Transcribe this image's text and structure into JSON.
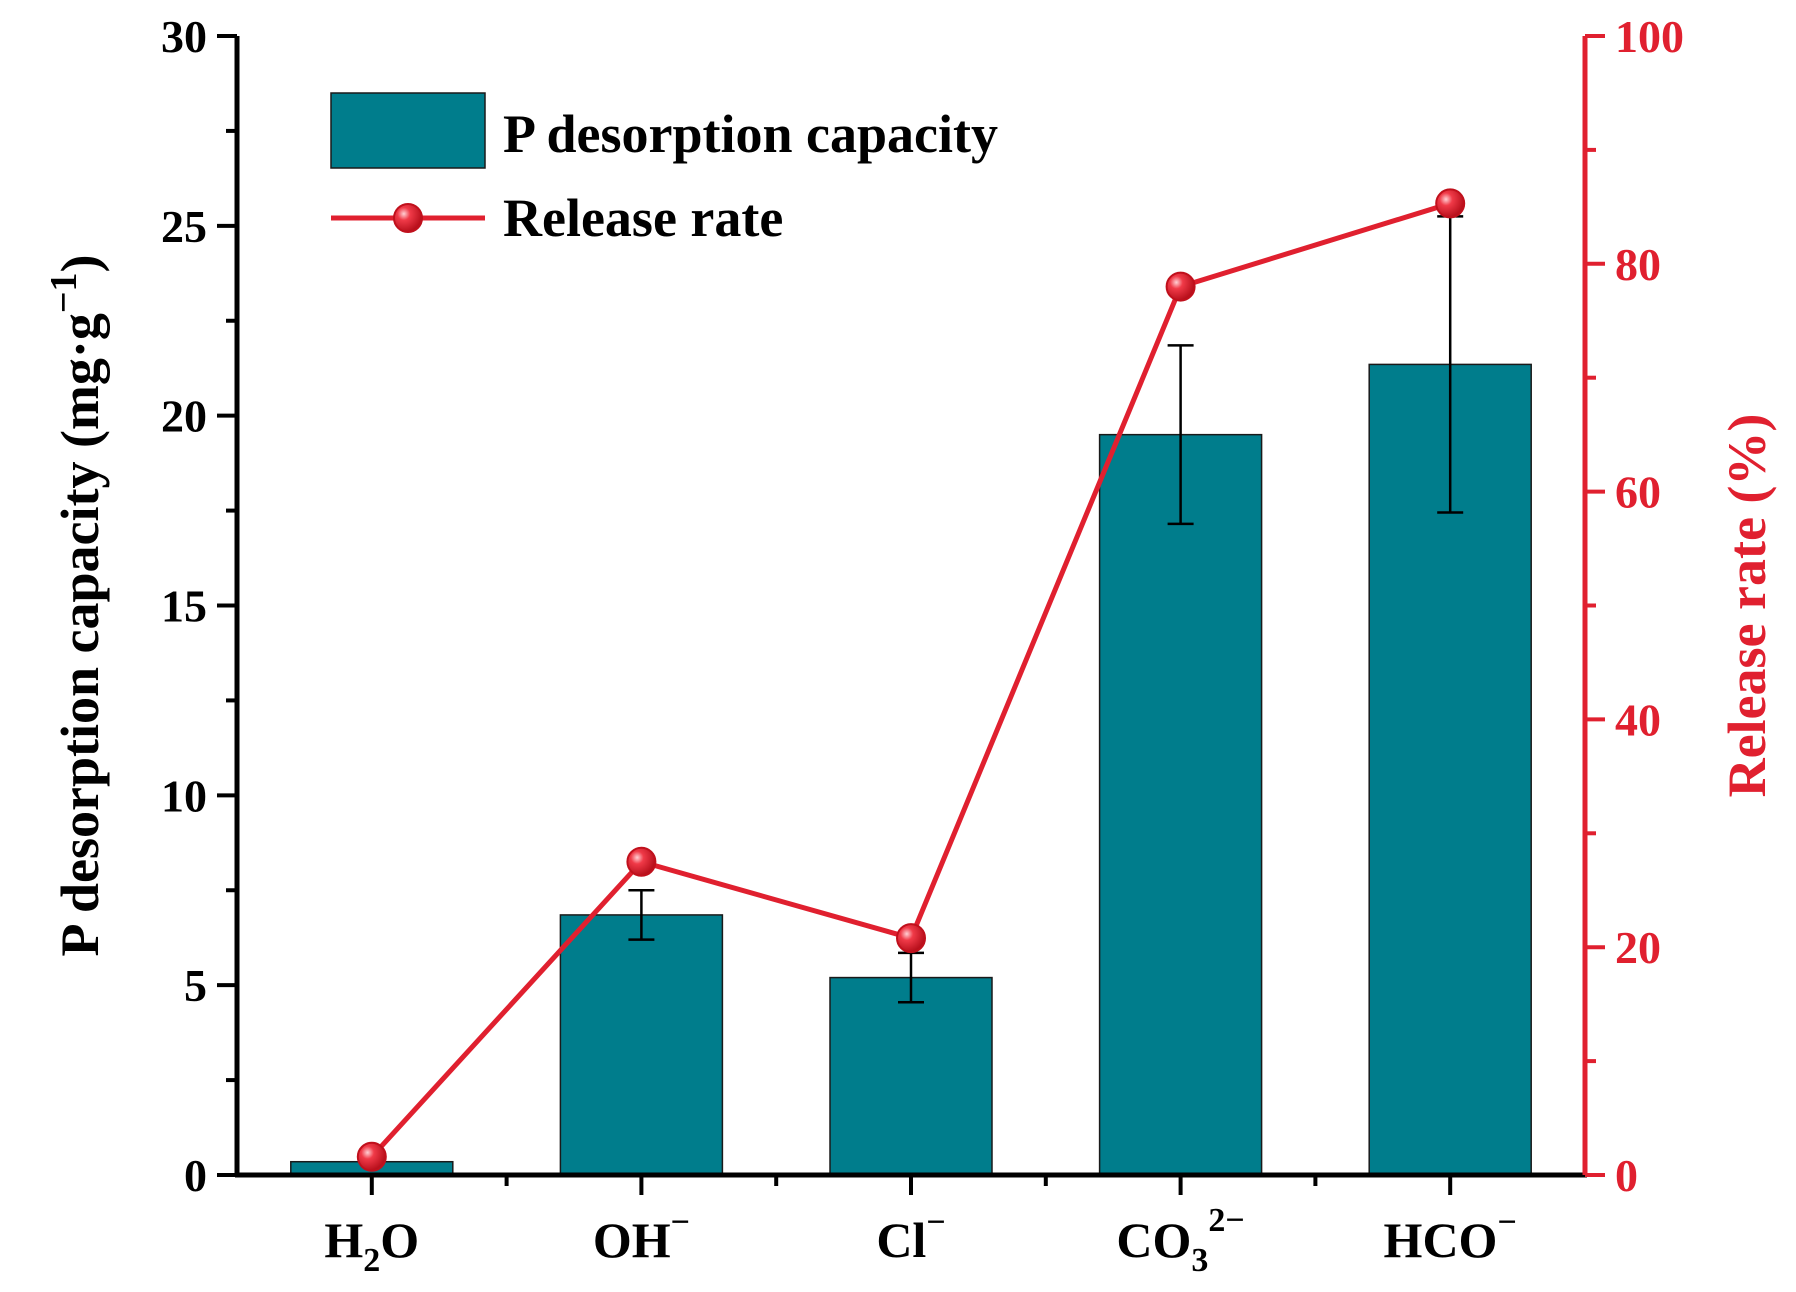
{
  "chart_data": {
    "type": "bar",
    "categories": [
      {
        "base": "H",
        "sub": "2",
        "rest": "O",
        "sup": ""
      },
      {
        "base": "OH",
        "sub": "",
        "rest": "",
        "sup": "−"
      },
      {
        "base": "Cl",
        "sub": "",
        "rest": "",
        "sup": "−"
      },
      {
        "base": "CO",
        "sub": "3",
        "rest": "",
        "sup": "2−"
      },
      {
        "base": "HCO",
        "sub": "",
        "rest": "",
        "sup": "−"
      }
    ],
    "series": [
      {
        "name": "P desorption capacity",
        "kind": "bar",
        "axis": "left",
        "values": [
          0.35,
          6.85,
          5.2,
          19.5,
          21.35
        ],
        "errors": [
          0,
          0.65,
          0.65,
          2.35,
          3.9
        ],
        "color": "#007d8c"
      },
      {
        "name": "Release rate",
        "kind": "line",
        "axis": "right",
        "values": [
          1.6,
          27.5,
          20.8,
          78.0,
          85.3
        ],
        "color": "#e0202f"
      }
    ],
    "y_left": {
      "label_main": "P desorption capacity (mg·g",
      "label_sup": "−1",
      "label_end": ")",
      "min": 0,
      "max": 30,
      "ticks": [
        "0",
        "5",
        "10",
        "15",
        "20",
        "25",
        "30"
      ],
      "tick_values": [
        0,
        5,
        10,
        15,
        20,
        25,
        30
      ]
    },
    "y_right": {
      "label": "Release rate (%)",
      "min": 0,
      "max": 100,
      "ticks": [
        "0",
        "20",
        "40",
        "60",
        "80",
        "100"
      ],
      "tick_values": [
        0,
        20,
        40,
        60,
        80,
        100
      ],
      "color": "#e0202f"
    },
    "legend": {
      "position": "top-left"
    },
    "grid": false
  }
}
